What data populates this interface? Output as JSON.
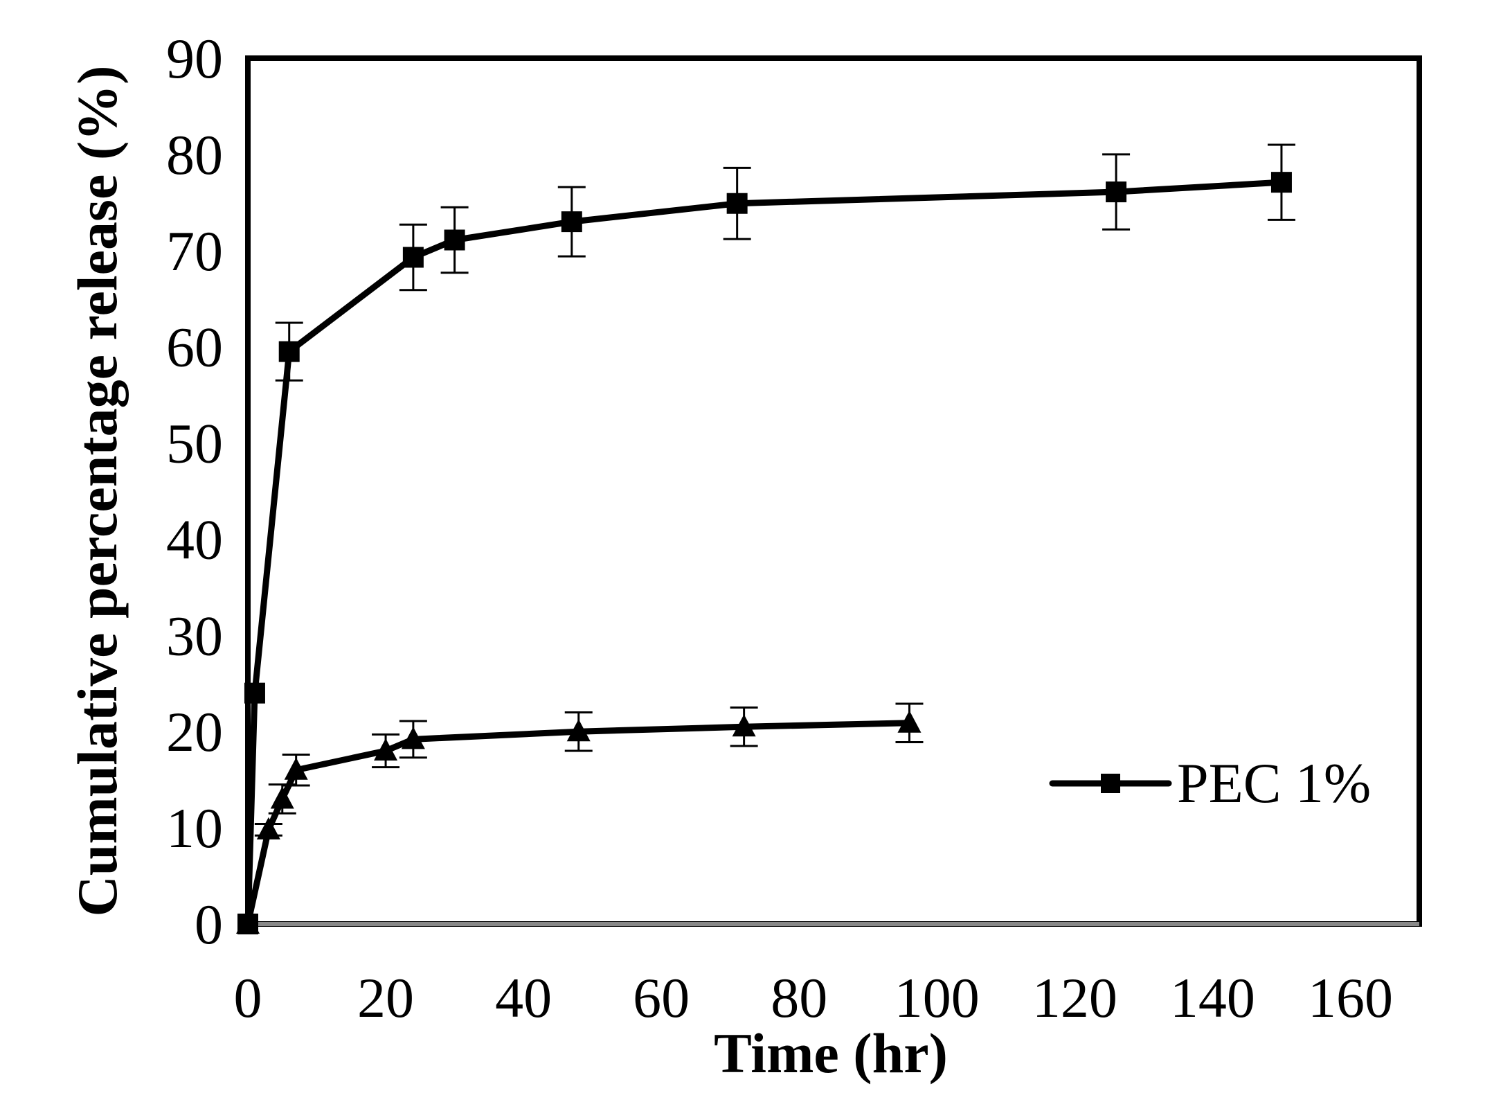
{
  "chart_data": {
    "type": "line",
    "title": "",
    "xlabel": "Time (hr)",
    "ylabel": "Cumulative percentage release (%)",
    "xlim": [
      0,
      170
    ],
    "ylim": [
      0,
      90
    ],
    "x_ticks": [
      0,
      20,
      40,
      60,
      80,
      100,
      120,
      140,
      160
    ],
    "y_ticks": [
      0,
      10,
      20,
      30,
      40,
      50,
      60,
      70,
      80,
      90
    ],
    "grid": false,
    "legend_position": "right-middle",
    "series": [
      {
        "name": "PEC 1%",
        "marker": "square",
        "in_legend": true,
        "x": [
          0,
          1,
          6,
          24,
          30,
          47,
          71,
          126,
          150
        ],
        "y": [
          0,
          24,
          59.5,
          69.3,
          71.1,
          73,
          74.9,
          76.1,
          77.1
        ],
        "err": [
          0,
          0,
          3,
          3.4,
          3.4,
          3.6,
          3.7,
          3.9,
          3.9
        ]
      },
      {
        "name": "",
        "marker": "triangle",
        "in_legend": false,
        "x": [
          0,
          3,
          5,
          7,
          20,
          24,
          48,
          72,
          96
        ],
        "y": [
          0,
          9.8,
          13,
          16,
          18,
          19.2,
          20,
          20.5,
          20.9
        ],
        "err": [
          0,
          0.6,
          1.5,
          1.6,
          1.7,
          1.9,
          2,
          2,
          2
        ]
      }
    ]
  }
}
